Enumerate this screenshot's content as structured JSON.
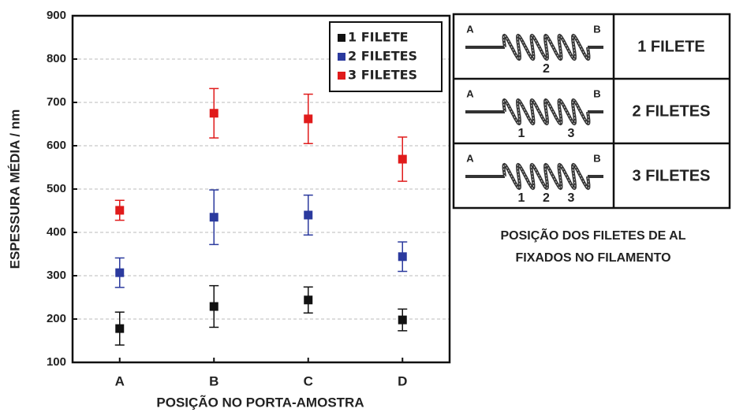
{
  "chart_data": {
    "type": "scatter",
    "x_label": "POSIÇÃO NO PORTA-AMOSTRA",
    "y_label": "ESPESSURA MÉDIA / nm",
    "categories": [
      "A",
      "B",
      "C",
      "D"
    ],
    "series": [
      {
        "name": "1 FILETE",
        "color": "#111111",
        "values": [
          178,
          229,
          244,
          198
        ],
        "errors": [
          38,
          48,
          30,
          25
        ]
      },
      {
        "name": "2 FILETES",
        "color": "#2b3a9e",
        "values": [
          307,
          435,
          440,
          344
        ],
        "errors": [
          34,
          63,
          46,
          34
        ]
      },
      {
        "name": "3 FILETES",
        "color": "#e01b1b",
        "values": [
          451,
          675,
          662,
          569
        ],
        "errors": [
          23,
          57,
          57,
          51
        ]
      }
    ],
    "ylim": [
      100,
      900
    ],
    "yticks": [
      100,
      200,
      300,
      400,
      500,
      600,
      700,
      800,
      900
    ],
    "grid": true,
    "legend": "top-right"
  },
  "diagram": {
    "rows": [
      {
        "ends": [
          "A",
          "B"
        ],
        "positions": [
          "2"
        ],
        "label": "1 FILETE"
      },
      {
        "ends": [
          "A",
          "B"
        ],
        "positions": [
          "1",
          "3"
        ],
        "label": "2 FILETES"
      },
      {
        "ends": [
          "A",
          "B"
        ],
        "positions": [
          "1",
          "2",
          "3"
        ],
        "label": "3 FILETES"
      }
    ],
    "caption": [
      "POSIÇÃO DOS FILETES DE AL",
      "FIXADOS NO FILAMENTO"
    ]
  }
}
